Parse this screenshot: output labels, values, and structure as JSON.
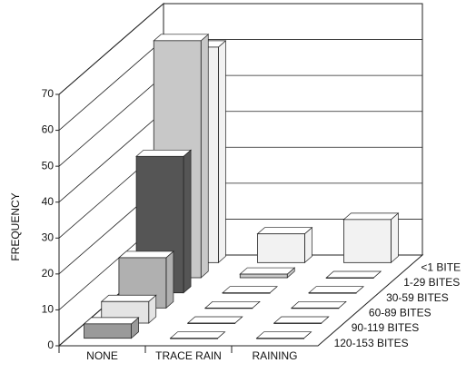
{
  "chart_data": {
    "type": "bar3d",
    "y_label": "FREQUENCY",
    "categories": [
      "NONE",
      "TRACE RAIN",
      "RAINING"
    ],
    "ylim": [
      0,
      70
    ],
    "yticks": [
      0,
      10,
      20,
      30,
      40,
      50,
      60,
      70
    ],
    "grid": true,
    "series": [
      {
        "name": "<1 BITE",
        "color": "#f2f2f2",
        "values": [
          60,
          8,
          12
        ]
      },
      {
        "name": "1-29 BITES",
        "color": "#c8c8c8",
        "values": [
          66,
          1,
          0
        ]
      },
      {
        "name": "30-59 BITES",
        "color": "#555555",
        "values": [
          38,
          0,
          0
        ]
      },
      {
        "name": "60-89 BITES",
        "color": "#b0b0b0",
        "values": [
          14,
          0,
          0
        ]
      },
      {
        "name": "90-119 BITES",
        "color": "#e4e4e4",
        "values": [
          6,
          0,
          0
        ]
      },
      {
        "name": "120-153 BITES",
        "color": "#9a9a9a",
        "values": [
          4,
          0,
          0
        ]
      }
    ]
  }
}
